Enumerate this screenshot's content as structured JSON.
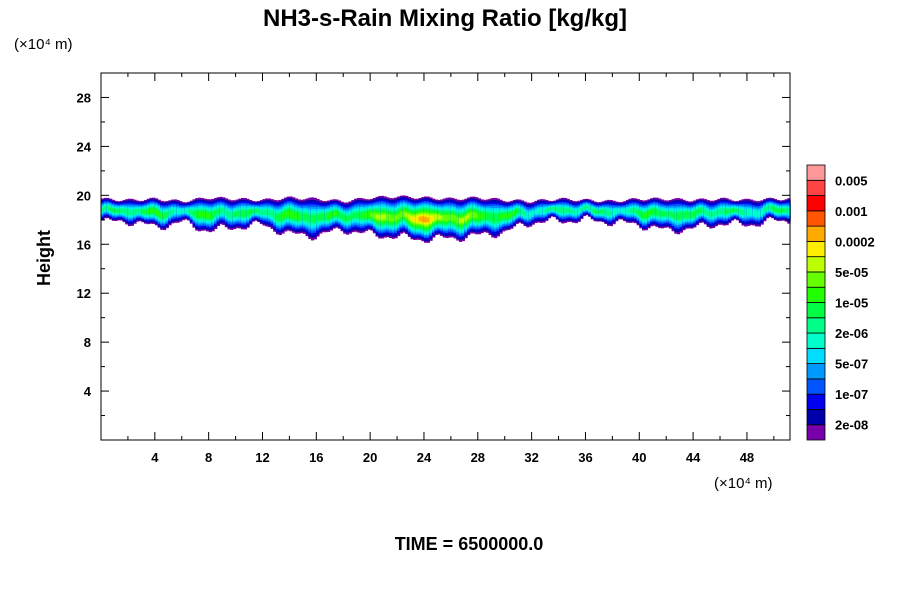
{
  "chart_data": {
    "type": "heatmap",
    "title": "NH3-s-Rain Mixing Ratio [kg/kg]",
    "xlabel": "",
    "ylabel": "Height",
    "x_unit_label": "(×10⁴ m)",
    "y_unit_label": "(×10⁴ m)",
    "footer": "TIME = 6500000.0",
    "xlim": [
      0,
      51.2
    ],
    "ylim": [
      0,
      30
    ],
    "x_ticks": [
      4,
      8,
      12,
      16,
      20,
      24,
      28,
      32,
      36,
      40,
      44,
      48
    ],
    "y_ticks": [
      4,
      8,
      12,
      16,
      20,
      24,
      28
    ],
    "colorbar": {
      "placement": "right",
      "labels": [
        "2e-08",
        "1e-07",
        "5e-07",
        "2e-06",
        "1e-05",
        "5e-05",
        "0.0002",
        "0.001",
        "0.005"
      ],
      "colors": [
        "#7700aa",
        "#0000aa",
        "#0000ee",
        "#0055ff",
        "#0099ff",
        "#00ddff",
        "#00ffcc",
        "#00ff88",
        "#00ff44",
        "#22ff00",
        "#66ff00",
        "#bbff00",
        "#ffee00",
        "#ffaa00",
        "#ff5500",
        "#ff0000",
        "#ff4444",
        "#ff9999"
      ]
    },
    "field_profile": {
      "x": [
        0,
        2,
        4,
        6,
        8,
        10,
        12,
        14,
        16,
        18,
        20,
        22,
        24,
        26,
        28,
        30,
        32,
        34,
        36,
        38,
        40,
        42,
        44,
        46,
        48,
        50,
        51.2
      ],
      "band_top": [
        19.9,
        19.8,
        19.9,
        19.7,
        20.0,
        19.9,
        19.8,
        20.0,
        19.9,
        19.7,
        20.0,
        20.1,
        20.0,
        19.9,
        20.0,
        19.8,
        19.7,
        19.9,
        19.8,
        19.7,
        19.9,
        19.9,
        19.8,
        19.9,
        19.8,
        19.9,
        19.9
      ],
      "band_bottom": [
        18.0,
        18.1,
        17.6,
        18.0,
        17.3,
        17.6,
        17.8,
        17.0,
        16.9,
        17.4,
        17.0,
        16.8,
        16.6,
        16.7,
        16.9,
        17.2,
        18.0,
        18.1,
        18.2,
        18.0,
        17.8,
        17.3,
        17.5,
        17.9,
        17.8,
        18.1,
        18.1
      ],
      "peak_level": [
        7,
        8,
        9,
        7,
        9,
        8,
        8,
        9,
        9,
        8,
        10,
        11,
        13,
        11,
        10,
        9,
        7,
        7,
        8,
        7,
        8,
        9,
        8,
        8,
        7,
        8,
        7
      ]
    }
  }
}
